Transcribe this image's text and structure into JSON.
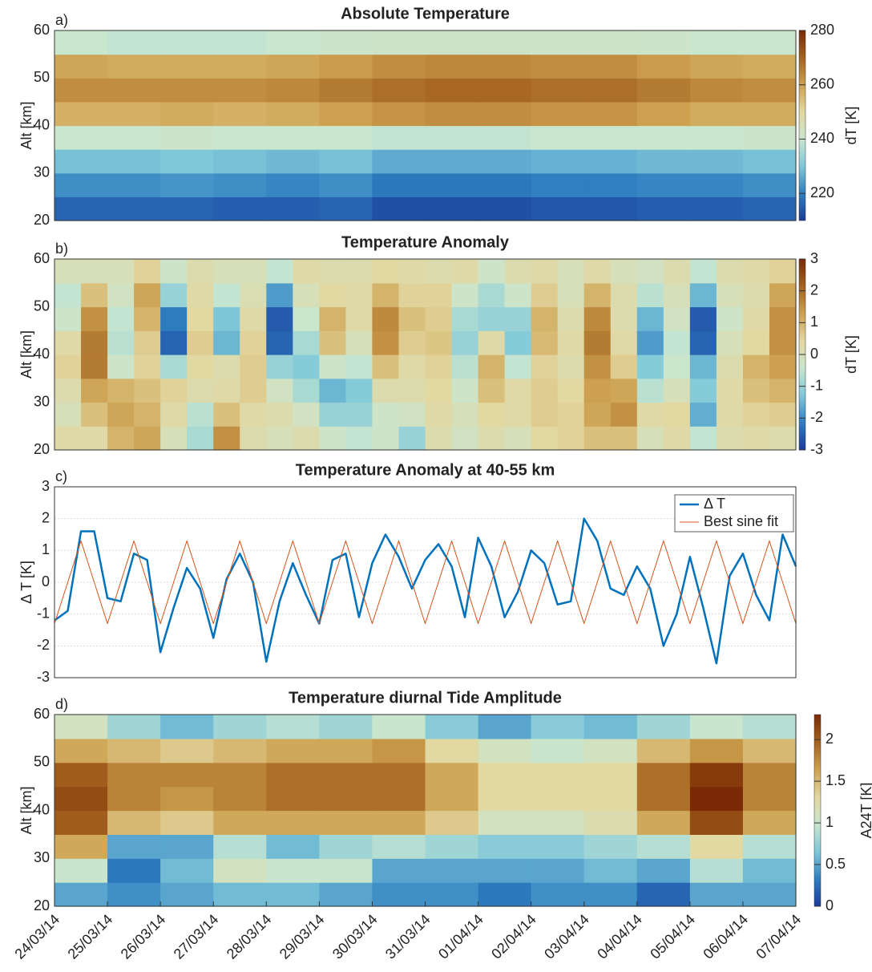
{
  "chart_data": [
    {
      "type": "heatmap",
      "panel_label": "a)",
      "title": "Absolute Temperature",
      "y_label": "Alt [km]",
      "colorbar_label": "dT [K]",
      "x": [
        0.5,
        1.5,
        2.5,
        3.5,
        4.5,
        5.5,
        6.5,
        7.5,
        8.5,
        9.5,
        10.5,
        11.5,
        12.5,
        13.5
      ],
      "y": [
        22.5,
        27.5,
        32.5,
        37.5,
        42.5,
        47.5,
        52.5,
        57.5
      ],
      "z": [
        [
          216,
          216,
          216,
          215,
          215,
          216,
          213,
          213,
          213,
          214,
          214,
          215,
          215,
          216
        ],
        [
          222,
          222,
          223,
          222,
          221,
          222,
          219,
          219,
          219,
          220,
          220,
          221,
          221,
          222
        ],
        [
          229,
          229,
          230,
          229,
          228,
          229,
          226,
          226,
          226,
          227,
          227,
          228,
          228,
          229
        ],
        [
          240,
          240,
          241,
          240,
          240,
          240,
          239,
          239,
          239,
          240,
          240,
          240,
          240,
          241
        ],
        [
          257,
          257,
          258,
          257,
          258,
          260,
          262,
          263,
          263,
          262,
          262,
          260,
          258,
          258
        ],
        [
          263,
          263,
          263,
          263,
          264,
          266,
          268,
          269,
          269,
          268,
          268,
          266,
          264,
          263
        ],
        [
          259,
          258,
          258,
          258,
          259,
          261,
          263,
          264,
          264,
          263,
          263,
          261,
          259,
          258
        ],
        [
          240,
          239,
          239,
          239,
          240,
          241,
          242,
          242,
          242,
          242,
          242,
          241,
          240,
          240
        ]
      ],
      "xlim": [
        0,
        14
      ],
      "ylim": [
        20,
        60
      ],
      "yticks": [
        20,
        30,
        40,
        50,
        60
      ],
      "clim": [
        210,
        280
      ],
      "cticks": [
        220,
        240,
        260,
        280
      ],
      "colormap": [
        "#1a3c9a",
        "#2f7fc1",
        "#7fc8d9",
        "#c9e6cf",
        "#e3d7a0",
        "#cda14f",
        "#a4621f",
        "#7a2a05"
      ]
    },
    {
      "type": "heatmap",
      "panel_label": "b)",
      "title": "Temperature Anomaly",
      "y_label": "Alt [km]",
      "colorbar_label": "dT [K]",
      "x": [
        0.25,
        0.75,
        1.25,
        1.75,
        2.25,
        2.75,
        3.25,
        3.75,
        4.25,
        4.75,
        5.25,
        5.75,
        6.25,
        6.75,
        7.25,
        7.75,
        8.25,
        8.75,
        9.25,
        9.75,
        10.25,
        10.75,
        11.25,
        11.75,
        12.25,
        12.75,
        13.25,
        13.75
      ],
      "y": [
        22.5,
        27.5,
        32.5,
        37.5,
        42.5,
        47.5,
        52.5,
        57.5
      ],
      "z": [
        [
          0.3,
          0.3,
          1.0,
          1.2,
          0,
          -0.8,
          1.5,
          0.2,
          0,
          0.2,
          -0.3,
          -0.5,
          -0.3,
          -1.0,
          0.2,
          -0.2,
          0.2,
          0,
          0.4,
          0.5,
          0.8,
          0.8,
          0,
          0.3,
          -0.5,
          0.2,
          0.3,
          0.2
        ],
        [
          0,
          0.8,
          1.2,
          1.0,
          0.3,
          -0.6,
          0.8,
          0.3,
          0.2,
          -0.2,
          -1.0,
          -1.0,
          -0.3,
          -0.2,
          0.3,
          0,
          0.4,
          0.3,
          0.6,
          0.5,
          1.2,
          1.5,
          0.3,
          0.4,
          -1.6,
          0.3,
          0.5,
          0.6
        ],
        [
          0.2,
          1.2,
          1.0,
          0.8,
          0.5,
          0.2,
          0.3,
          0.6,
          -0.2,
          -0.8,
          -1.5,
          -1.2,
          0.2,
          0.2,
          0.4,
          -0.3,
          0.8,
          0.3,
          0.6,
          0.4,
          1.3,
          1.2,
          -0.6,
          0,
          -1.2,
          0.3,
          0.8,
          1.0
        ],
        [
          0.5,
          1.8,
          -0.3,
          0.5,
          -0.8,
          0.4,
          0.2,
          0.6,
          -1.0,
          -1.2,
          -0.3,
          -0.5,
          0.8,
          0.3,
          0.5,
          -0.6,
          1.0,
          -0.5,
          0.5,
          0.2,
          1.5,
          0.6,
          -1.2,
          -0.4,
          -1.5,
          0.2,
          1.0,
          1.3
        ],
        [
          0.3,
          1.8,
          -0.6,
          0.6,
          -2.5,
          0.6,
          -1.5,
          0.5,
          -2.5,
          -0.8,
          0.8,
          0,
          1.5,
          0.6,
          0.7,
          -1.0,
          0.3,
          -1.2,
          0.9,
          0.3,
          1.8,
          0.3,
          -1.8,
          -0.5,
          -2.5,
          0,
          0.4,
          1.5
        ],
        [
          -0.3,
          1.5,
          -0.5,
          1.0,
          -2.2,
          0.4,
          -1.3,
          0.3,
          -2.6,
          -0.4,
          1.0,
          0.3,
          1.6,
          0.8,
          0.6,
          -0.8,
          -1.0,
          -1.0,
          1.0,
          0.2,
          1.6,
          0.2,
          -1.5,
          -0.2,
          -2.6,
          -0.3,
          0.3,
          1.5
        ],
        [
          -0.5,
          0.8,
          -0.2,
          1.2,
          -1.0,
          0.3,
          -0.5,
          0.1,
          -1.8,
          0,
          0.4,
          0.3,
          1.0,
          0.5,
          0.5,
          -0.3,
          -0.8,
          -0.3,
          0.6,
          0,
          1.0,
          0.2,
          -0.6,
          0,
          -1.5,
          0,
          0.2,
          1.2
        ],
        [
          0,
          0,
          0,
          0.5,
          -0.3,
          0.2,
          0,
          0,
          -0.5,
          0.3,
          0.2,
          0.2,
          0.4,
          0.3,
          0.2,
          0.3,
          -0.3,
          0.2,
          0.3,
          0,
          0.3,
          0,
          -0.2,
          0.2,
          -0.5,
          0.2,
          0.3,
          0.5
        ]
      ],
      "xlim": [
        0,
        14
      ],
      "ylim": [
        20,
        60
      ],
      "yticks": [
        20,
        30,
        40,
        50,
        60
      ],
      "clim": [
        -3,
        3
      ],
      "cticks": [
        -3,
        -2,
        -1,
        0,
        1,
        2,
        3
      ],
      "colormap": [
        "#1a3c9a",
        "#2f7fc1",
        "#7fc8d9",
        "#c9e6cf",
        "#e3d7a0",
        "#cda14f",
        "#a4621f",
        "#7a2a05"
      ]
    },
    {
      "type": "line",
      "panel_label": "c)",
      "title": "Temperature Anomaly at 40-55 km",
      "y_label": "Δ T [K]",
      "x": [
        0,
        0.25,
        0.5,
        0.75,
        1,
        1.25,
        1.5,
        1.75,
        2,
        2.25,
        2.5,
        2.75,
        3,
        3.25,
        3.5,
        3.75,
        4,
        4.25,
        4.5,
        4.75,
        5,
        5.25,
        5.5,
        5.75,
        6,
        6.25,
        6.5,
        6.75,
        7,
        7.25,
        7.5,
        7.75,
        8,
        8.25,
        8.5,
        8.75,
        9,
        9.25,
        9.5,
        9.75,
        10,
        10.25,
        10.5,
        10.75,
        11,
        11.25,
        11.5,
        11.75,
        12,
        12.25,
        12.5,
        12.75,
        13,
        13.25,
        13.5,
        13.75,
        14
      ],
      "series": [
        {
          "name": "Δ T",
          "color": "#0072bd",
          "values": [
            -1.2,
            -0.9,
            1.6,
            1.6,
            -0.5,
            -0.6,
            0.9,
            0.7,
            -2.2,
            -0.8,
            0.45,
            -0.2,
            -1.75,
            0.1,
            0.9,
            0,
            -2.5,
            -0.6,
            0.6,
            -0.4,
            -1.3,
            0.7,
            0.9,
            -1.1,
            0.6,
            1.5,
            0.8,
            -0.2,
            0.7,
            1.2,
            0.5,
            -1.1,
            1.4,
            0.5,
            -1.1,
            -0.3,
            1,
            0.6,
            -0.7,
            -0.6,
            2,
            1.3,
            -0.2,
            -0.4,
            0.5,
            -0.2,
            -2,
            -1,
            0.8,
            -0.8,
            -2.55,
            0.2,
            0.9,
            -0.4,
            -1.2,
            1.5,
            0.5
          ]
        },
        {
          "name": "Best sine fit",
          "color": "#d95319",
          "values": [
            -1.3,
            0,
            1.3,
            0,
            -1.3,
            0,
            1.3,
            0,
            -1.3,
            0,
            1.3,
            0,
            -1.3,
            0,
            1.3,
            0,
            -1.3,
            0,
            1.3,
            0,
            -1.3,
            0,
            1.3,
            0,
            -1.3,
            0,
            1.3,
            0,
            -1.3,
            0,
            1.3,
            0,
            -1.3,
            0,
            1.3,
            0,
            -1.3,
            0,
            1.3,
            0,
            -1.3,
            0,
            1.3,
            0,
            -1.3,
            0,
            1.3,
            0,
            -1.3,
            0,
            1.3,
            0,
            -1.3,
            0,
            1.3,
            0,
            -1.3
          ]
        }
      ],
      "xlim": [
        0,
        14
      ],
      "ylim": [
        -3,
        3
      ],
      "yticks": [
        -3,
        -2,
        -1,
        0,
        1,
        2,
        3
      ],
      "grid": true,
      "legend": "upper-right"
    },
    {
      "type": "heatmap",
      "panel_label": "d)",
      "title": "Temperature diurnal Tide Amplitude",
      "y_label": "Alt [km]",
      "colorbar_label": "A24T [K]",
      "x": [
        0.5,
        1.5,
        2.5,
        3.5,
        4.5,
        5.5,
        6.5,
        7.5,
        8.5,
        9.5,
        10.5,
        11.5,
        12.5,
        13.5
      ],
      "y": [
        22.5,
        27.5,
        32.5,
        37.5,
        42.5,
        47.5,
        52.5,
        57.5
      ],
      "z": [
        [
          0.5,
          0.4,
          0.5,
          0.6,
          0.6,
          0.5,
          0.4,
          0.4,
          0.3,
          0.4,
          0.4,
          0.2,
          0.5,
          0.5
        ],
        [
          1.0,
          0.3,
          0.6,
          1.1,
          1.0,
          1.0,
          0.5,
          0.5,
          0.5,
          0.5,
          0.6,
          0.5,
          0.9,
          0.6
        ],
        [
          1.6,
          0.5,
          0.5,
          0.9,
          0.6,
          0.8,
          0.9,
          0.8,
          0.7,
          0.7,
          0.8,
          0.9,
          1.3,
          0.9
        ],
        [
          2.0,
          1.5,
          1.4,
          1.6,
          1.6,
          1.6,
          1.6,
          1.4,
          1.1,
          1.1,
          1.2,
          1.6,
          2.1,
          1.6
        ],
        [
          2.1,
          1.8,
          1.7,
          1.8,
          1.9,
          1.9,
          1.9,
          1.6,
          1.3,
          1.3,
          1.3,
          1.9,
          2.3,
          1.8
        ],
        [
          2.0,
          1.8,
          1.8,
          1.8,
          1.9,
          1.9,
          1.9,
          1.6,
          1.3,
          1.3,
          1.3,
          1.9,
          2.2,
          1.8
        ],
        [
          1.6,
          1.5,
          1.4,
          1.5,
          1.6,
          1.6,
          1.7,
          1.3,
          1.1,
          1.0,
          1.1,
          1.5,
          1.7,
          1.5
        ],
        [
          1.1,
          0.8,
          0.6,
          0.8,
          0.9,
          0.8,
          1.0,
          0.7,
          0.5,
          0.7,
          0.6,
          0.8,
          1.0,
          0.9
        ]
      ],
      "xlim": [
        0,
        14
      ],
      "ylim": [
        20,
        60
      ],
      "yticks": [
        20,
        30,
        40,
        50,
        60
      ],
      "xticks": [
        {
          "value": 0,
          "label": "24/03/14"
        },
        {
          "value": 1,
          "label": "25/03/14"
        },
        {
          "value": 2,
          "label": "26/03/14"
        },
        {
          "value": 3,
          "label": "27/03/14"
        },
        {
          "value": 4,
          "label": "28/03/14"
        },
        {
          "value": 5,
          "label": "29/03/14"
        },
        {
          "value": 6,
          "label": "30/03/14"
        },
        {
          "value": 7,
          "label": "31/03/14"
        },
        {
          "value": 8,
          "label": "01/04/14"
        },
        {
          "value": 9,
          "label": "02/04/14"
        },
        {
          "value": 10,
          "label": "03/04/14"
        },
        {
          "value": 11,
          "label": "04/04/14"
        },
        {
          "value": 12,
          "label": "05/04/14"
        },
        {
          "value": 13,
          "label": "06/04/14"
        },
        {
          "value": 14,
          "label": "07/04/14"
        }
      ],
      "clim": [
        0,
        2.3
      ],
      "cticks": [
        0,
        0.5,
        1,
        1.5,
        2
      ],
      "colormap": [
        "#1a3c9a",
        "#2f7fc1",
        "#7fc8d9",
        "#c9e6cf",
        "#e3d7a0",
        "#cda14f",
        "#a4621f",
        "#7a2a05"
      ]
    }
  ]
}
